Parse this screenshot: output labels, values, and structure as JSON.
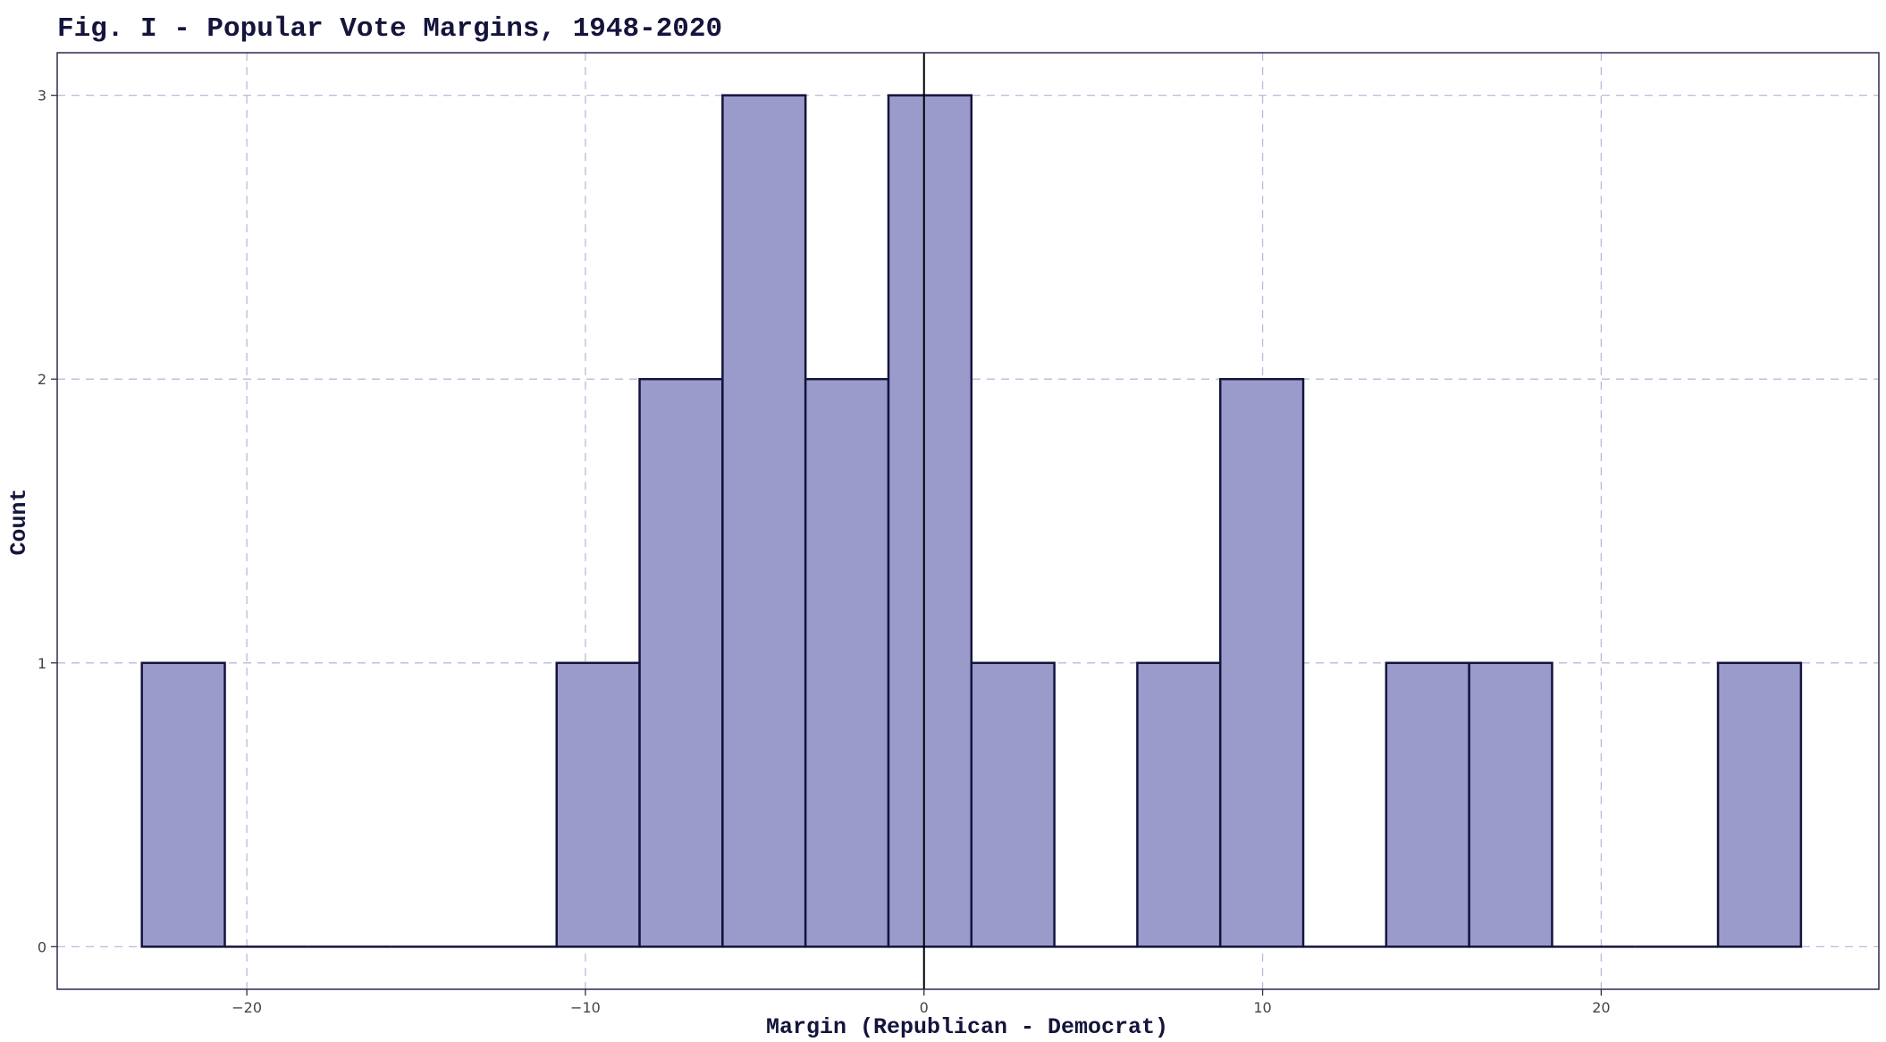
{
  "chart_data": {
    "type": "bar",
    "title": "Fig. I - Popular Vote Margins, 1948-2020",
    "xlabel": "Margin (Republican - Democrat)",
    "ylabel": "Count",
    "xlim": [
      -25.6,
      28.2
    ],
    "ylim": [
      -0.15,
      3.15
    ],
    "x_ticks": [
      -20,
      -10,
      0,
      10,
      20
    ],
    "y_ticks": [
      0,
      1,
      2,
      3
    ],
    "grid": true,
    "reference_line_x": 0,
    "bins": [
      {
        "start": -23.1,
        "end": -20.65,
        "count": 1
      },
      {
        "start": -20.65,
        "end": -18.2,
        "count": 0
      },
      {
        "start": -18.2,
        "end": -15.75,
        "count": 0
      },
      {
        "start": -15.75,
        "end": -13.3,
        "count": 0
      },
      {
        "start": -13.3,
        "end": -10.85,
        "count": 0
      },
      {
        "start": -10.85,
        "end": -8.4,
        "count": 1
      },
      {
        "start": -8.4,
        "end": -5.95,
        "count": 2
      },
      {
        "start": -5.95,
        "end": -3.5,
        "count": 3
      },
      {
        "start": -3.5,
        "end": -1.05,
        "count": 2
      },
      {
        "start": -1.05,
        "end": 1.4,
        "count": 3
      },
      {
        "start": 1.4,
        "end": 3.85,
        "count": 1
      },
      {
        "start": 3.85,
        "end": 6.3,
        "count": 0
      },
      {
        "start": 6.3,
        "end": 8.75,
        "count": 1
      },
      {
        "start": 8.75,
        "end": 11.2,
        "count": 2
      },
      {
        "start": 11.2,
        "end": 13.65,
        "count": 0
      },
      {
        "start": 13.65,
        "end": 16.1,
        "count": 1
      },
      {
        "start": 16.1,
        "end": 18.55,
        "count": 1
      },
      {
        "start": 18.55,
        "end": 21.0,
        "count": 0
      },
      {
        "start": 21.0,
        "end": 23.45,
        "count": 0
      },
      {
        "start": 23.45,
        "end": 25.9,
        "count": 1
      }
    ],
    "colors": {
      "bar_fill": "#9a9bca",
      "bar_stroke": "#14143c",
      "grid": "#b8bbdc",
      "panel_border": "#2a2a50",
      "reference_line": "#000000",
      "title": "#14143c"
    }
  }
}
